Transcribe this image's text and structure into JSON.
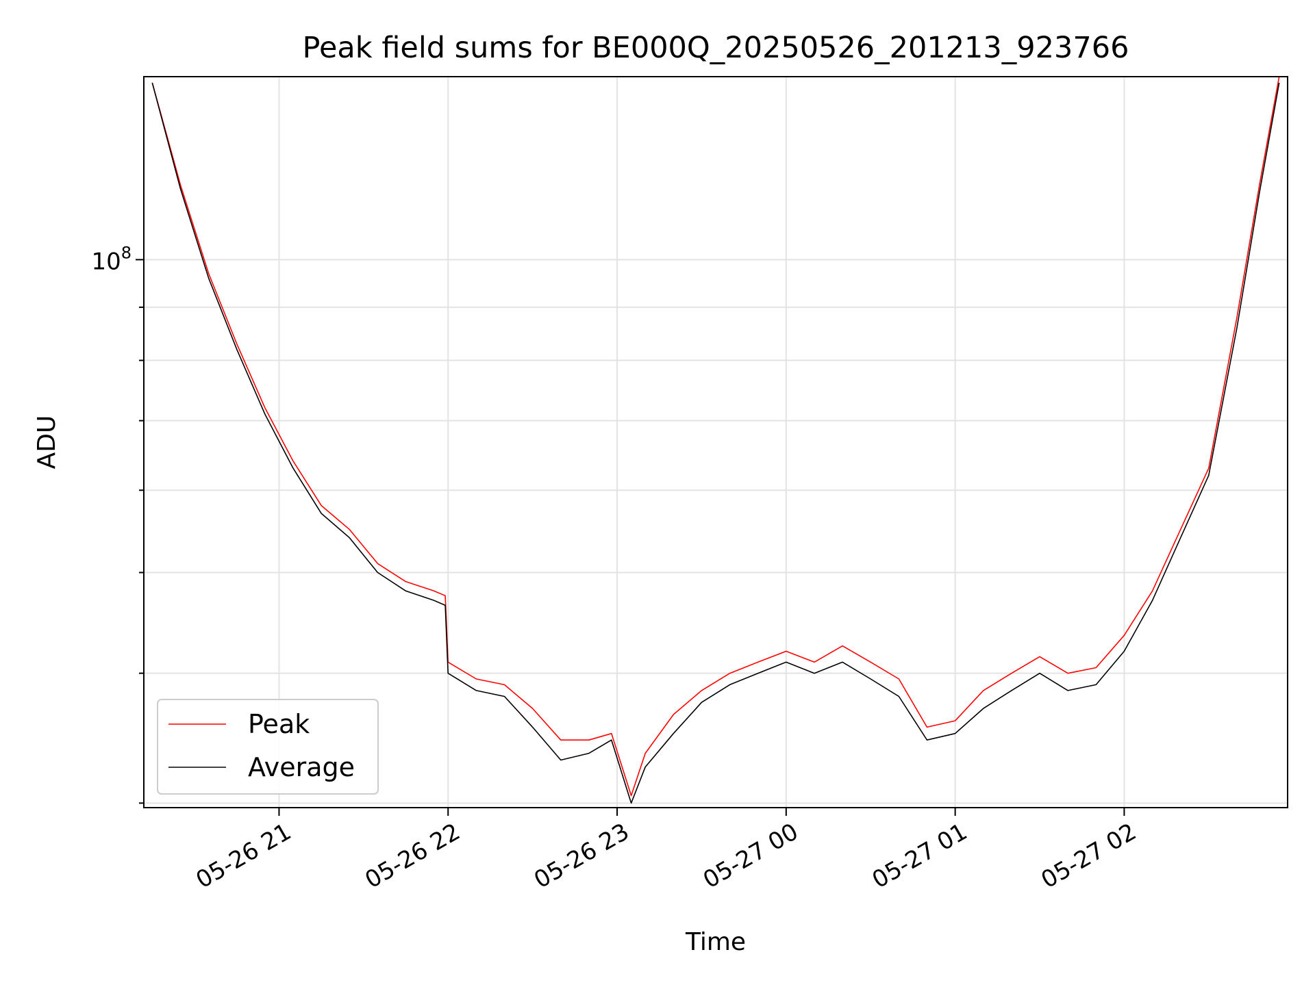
{
  "chart_data": {
    "type": "line",
    "title": "Peak field sums for BE000Q_20250526_201213_923766",
    "xlabel": "Time",
    "ylabel": "ADU",
    "y_scale": "log",
    "ylim": [
      29700000,
      150000000
    ],
    "xlim": [
      "2025-05-26 20:12",
      "2025-05-27 02:58"
    ],
    "x_ticks": [
      "05-26 21",
      "05-26 22",
      "05-26 23",
      "05-27 00",
      "05-27 01",
      "05-27 02"
    ],
    "y_ticks": [
      {
        "label": "10",
        "exponent": "8",
        "value": 100000000
      }
    ],
    "grid": true,
    "legend_position": "lower-left",
    "series": [
      {
        "name": "Peak",
        "color": "#ff0000",
        "x": [
          "2025-05-26 20:15",
          "2025-05-26 20:25",
          "2025-05-26 20:35",
          "2025-05-26 20:45",
          "2025-05-26 20:55",
          "2025-05-26 21:05",
          "2025-05-26 21:15",
          "2025-05-26 21:25",
          "2025-05-26 21:35",
          "2025-05-26 21:45",
          "2025-05-26 21:55",
          "2025-05-26 21:59",
          "2025-05-26 22:00",
          "2025-05-26 22:10",
          "2025-05-26 22:20",
          "2025-05-26 22:30",
          "2025-05-26 22:40",
          "2025-05-26 22:50",
          "2025-05-26 22:58",
          "2025-05-26 23:05",
          "2025-05-26 23:10",
          "2025-05-26 23:20",
          "2025-05-26 23:30",
          "2025-05-26 23:40",
          "2025-05-26 23:50",
          "2025-05-27 00:00",
          "2025-05-27 00:10",
          "2025-05-27 00:20",
          "2025-05-27 00:30",
          "2025-05-27 00:40",
          "2025-05-27 00:50",
          "2025-05-27 01:00",
          "2025-05-27 01:10",
          "2025-05-27 01:20",
          "2025-05-27 01:30",
          "2025-05-27 01:40",
          "2025-05-27 01:50",
          "2025-05-27 02:00",
          "2025-05-27 02:10",
          "2025-05-27 02:20",
          "2025-05-27 02:30",
          "2025-05-27 02:40",
          "2025-05-27 02:48",
          "2025-05-27 02:55"
        ],
        "values": [
          148000000,
          118000000,
          97000000,
          83000000,
          72000000,
          64000000,
          58000000,
          55000000,
          51000000,
          49000000,
          48000000,
          47500000,
          41000000,
          39500000,
          39000000,
          37000000,
          34500000,
          34500000,
          35000000,
          30500000,
          33500000,
          36500000,
          38500000,
          40000000,
          41000000,
          42000000,
          41000000,
          42500000,
          41000000,
          39500000,
          35500000,
          36000000,
          38500000,
          40000000,
          41500000,
          40000000,
          40500000,
          43500000,
          48000000,
          55000000,
          63000000,
          88000000,
          118000000,
          150000000
        ]
      },
      {
        "name": "Average",
        "color": "#000000",
        "x": [
          "2025-05-26 20:15",
          "2025-05-26 20:25",
          "2025-05-26 20:35",
          "2025-05-26 20:45",
          "2025-05-26 20:55",
          "2025-05-26 21:05",
          "2025-05-26 21:15",
          "2025-05-26 21:25",
          "2025-05-26 21:35",
          "2025-05-26 21:45",
          "2025-05-26 21:55",
          "2025-05-26 21:59",
          "2025-05-26 22:00",
          "2025-05-26 22:10",
          "2025-05-26 22:20",
          "2025-05-26 22:30",
          "2025-05-26 22:40",
          "2025-05-26 22:50",
          "2025-05-26 22:58",
          "2025-05-26 23:05",
          "2025-05-26 23:10",
          "2025-05-26 23:20",
          "2025-05-26 23:30",
          "2025-05-26 23:40",
          "2025-05-26 23:50",
          "2025-05-27 00:00",
          "2025-05-27 00:10",
          "2025-05-27 00:20",
          "2025-05-27 00:30",
          "2025-05-27 00:40",
          "2025-05-27 00:50",
          "2025-05-27 01:00",
          "2025-05-27 01:10",
          "2025-05-27 01:20",
          "2025-05-27 01:30",
          "2025-05-27 01:40",
          "2025-05-27 01:50",
          "2025-05-27 02:00",
          "2025-05-27 02:10",
          "2025-05-27 02:20",
          "2025-05-27 02:30",
          "2025-05-27 02:40",
          "2025-05-27 02:48",
          "2025-05-27 02:55"
        ],
        "values": [
          148000000,
          117000000,
          96000000,
          82000000,
          71000000,
          63000000,
          57000000,
          54000000,
          50000000,
          48000000,
          47000000,
          46500000,
          40000000,
          38500000,
          38000000,
          35500000,
          33000000,
          33500000,
          34500000,
          30000000,
          32500000,
          35000000,
          37500000,
          39000000,
          40000000,
          41000000,
          40000000,
          41000000,
          39500000,
          38000000,
          34500000,
          35000000,
          37000000,
          38500000,
          40000000,
          38500000,
          39000000,
          42000000,
          47000000,
          54000000,
          62000000,
          86000000,
          116000000,
          148000000
        ]
      }
    ]
  }
}
